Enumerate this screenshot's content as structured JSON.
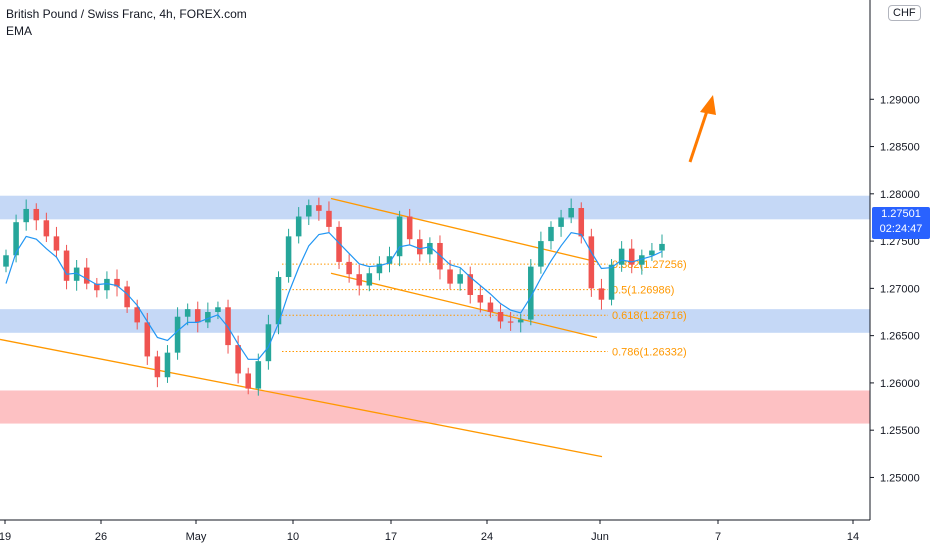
{
  "header": {
    "symbol_title": "British Pound / Swiss Franc, 4h, FOREX.com",
    "indicator": "EMA",
    "currency_button": "CHF"
  },
  "price_tag": {
    "price": "1.27501",
    "countdown": "02:24:47",
    "color": "#2962ff"
  },
  "colors": {
    "up": "#26a69a",
    "down": "#ef5350",
    "ema": "#2196f3",
    "trendline": "#ff9800",
    "zone_blue": "#bbd1f5",
    "zone_red": "#fdb6b8",
    "axis_text": "#131722"
  },
  "chart_data": {
    "type": "candlestick",
    "x_ticks": [
      "19",
      "26",
      "May",
      "10",
      "17",
      "24",
      "Jun",
      "7",
      "14"
    ],
    "y_ticks": [
      "1.25000",
      "1.25500",
      "1.26000",
      "1.26500",
      "1.27000",
      "1.27500",
      "1.28000",
      "1.28500",
      "1.29000"
    ],
    "ylim": [
      1.2455,
      1.3005
    ],
    "close_path": [
      1.2735,
      1.277,
      1.2784,
      1.2772,
      1.2755,
      1.274,
      1.2708,
      1.2722,
      1.2705,
      1.2698,
      1.271,
      1.2702,
      1.268,
      1.2664,
      1.2628,
      1.2606,
      1.2632,
      1.267,
      1.2678,
      1.2664,
      1.2675,
      1.268,
      1.264,
      1.261,
      1.2594,
      1.2623,
      1.2662,
      1.2712,
      1.2755,
      1.2776,
      1.2788,
      1.2782,
      1.2765,
      1.2728,
      1.2715,
      1.2703,
      1.2716,
      1.2726,
      1.2734,
      1.2776,
      1.2752,
      1.2736,
      1.2748,
      1.272,
      1.2705,
      1.2715,
      1.2693,
      1.2685,
      1.2675,
      1.2665,
      1.2664,
      1.2667,
      1.2723,
      1.275,
      1.2765,
      1.2775,
      1.2785,
      1.2755,
      1.27,
      1.2688,
      1.2725,
      1.2742,
      1.2725,
      1.2735,
      1.274,
      1.2747
    ],
    "ema_path": [
      1.2705,
      1.2738,
      1.2755,
      1.2752,
      1.2742,
      1.2733,
      1.2715,
      1.2716,
      1.271,
      1.2704,
      1.2705,
      1.2703,
      1.2694,
      1.2682,
      1.2665,
      1.2648,
      1.2645,
      1.2655,
      1.2664,
      1.2664,
      1.2668,
      1.2672,
      1.2659,
      1.2641,
      1.2625,
      1.2625,
      1.2638,
      1.2663,
      1.2695,
      1.2722,
      1.2745,
      1.2757,
      1.2759,
      1.2748,
      1.2737,
      1.2726,
      1.2723,
      1.2724,
      1.2727,
      1.2744,
      1.2746,
      1.2742,
      1.2744,
      1.2735,
      1.2725,
      1.2722,
      1.2712,
      1.2703,
      1.2694,
      1.2684,
      1.2677,
      1.2674,
      1.2691,
      1.2711,
      1.2729,
      1.2745,
      1.2759,
      1.2757,
      1.2738,
      1.2721,
      1.2722,
      1.273,
      1.2728,
      1.2731,
      1.2734,
      1.2739
    ],
    "zones": [
      {
        "from": 1.2773,
        "to": 1.2798,
        "color": "blue"
      },
      {
        "from": 1.2653,
        "to": 1.2678,
        "color": "blue"
      },
      {
        "from": 1.2557,
        "to": 1.2592,
        "color": "red"
      }
    ],
    "fib_levels": [
      {
        "label": "0.382(1.27256)",
        "value": 1.27256
      },
      {
        "label": "0.5(1.26986)",
        "value": 1.26986
      },
      {
        "label": "0.618(1.26716)",
        "value": 1.26716
      },
      {
        "label": "0.786(1.26332)",
        "value": 1.26332
      }
    ],
    "trendlines": [
      {
        "from": [
          "19",
          1.2646
        ],
        "to": [
          "Jun",
          1.2522
        ]
      },
      {
        "from": [
          "10",
          1.2795
        ],
        "to": [
          "Jun",
          1.2728
        ]
      },
      {
        "from": [
          "10",
          1.2716
        ],
        "to": [
          "Jun",
          1.2648
        ]
      }
    ],
    "arrow": {
      "direction": "up",
      "color": "#ff7a00"
    }
  }
}
